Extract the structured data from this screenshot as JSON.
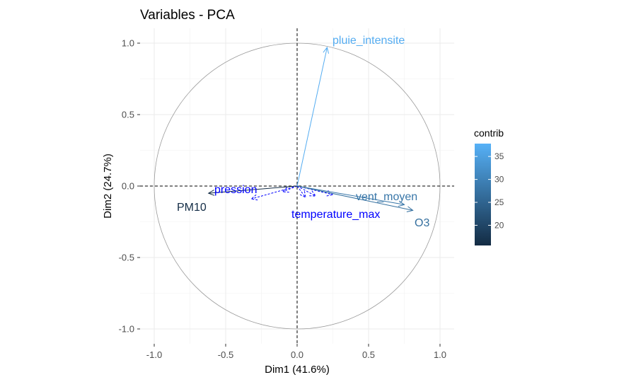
{
  "chart_data": {
    "type": "scatter",
    "title": "Variables - PCA",
    "xlabel": "Dim1 (41.6%)",
    "ylabel": "Dim2 (24.7%)",
    "xlim": [
      -1.0,
      1.0
    ],
    "ylim": [
      -1.0,
      1.0
    ],
    "x_ticks": [
      "-1.0",
      "-0.5",
      "0.0",
      "0.5",
      "1.0"
    ],
    "y_ticks": [
      "1.0",
      "0.5",
      "0.0",
      "-0.5",
      "-1.0"
    ],
    "grid": true,
    "correlation_circle": true,
    "active_variables": [
      {
        "name": "pluie_intensite",
        "x": 0.21,
        "y": 0.97,
        "contrib": 37
      },
      {
        "name": "vent_moyen",
        "x": 0.75,
        "y": -0.13,
        "contrib": 28
      },
      {
        "name": "O3",
        "x": 0.81,
        "y": -0.17,
        "contrib": 27
      },
      {
        "name": "PM10",
        "x": -0.62,
        "y": -0.05,
        "contrib": 16
      }
    ],
    "supplementary_variables": [
      {
        "name": "pression",
        "x": -0.32,
        "y": -0.09
      },
      {
        "name": "temperature_max",
        "x": 0.25,
        "y": -0.06
      },
      {
        "name": "",
        "x": 0.13,
        "y": -0.07
      },
      {
        "name": "",
        "x": 0.06,
        "y": -0.08
      },
      {
        "name": "",
        "x": -0.1,
        "y": -0.04
      }
    ],
    "supplementary_color": "#0000ff",
    "legend": {
      "title": "contrib",
      "ticks": [
        20,
        25,
        30,
        35
      ],
      "tick_labels": [
        "20",
        "25",
        "30",
        "35"
      ],
      "range": [
        15.6,
        37.8
      ],
      "low_color": "#132b43",
      "high_color": "#56b1f7",
      "position": "right"
    }
  }
}
